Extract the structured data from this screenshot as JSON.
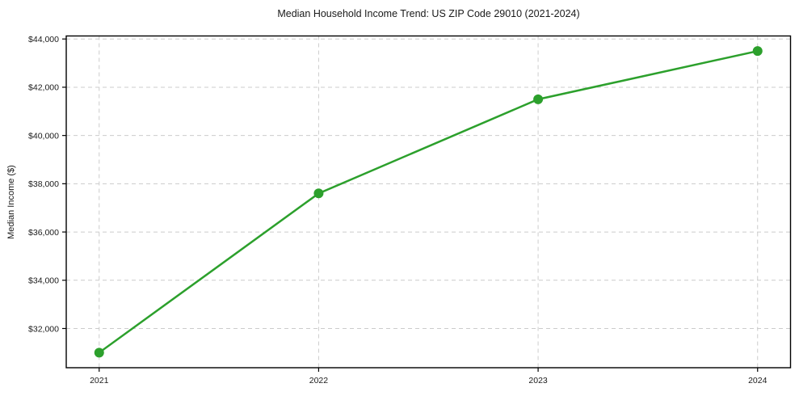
{
  "chart_data": {
    "type": "line",
    "title": "Median Household Income Trend: US ZIP Code 29010 (2021-2024)",
    "xlabel": "",
    "ylabel": "Median Income ($)",
    "x": [
      2021,
      2022,
      2023,
      2024
    ],
    "x_tick_labels": [
      "2021",
      "2022",
      "2023",
      "2024"
    ],
    "series": [
      {
        "name": "Median Household Income",
        "values": [
          31000,
          37600,
          41500,
          43500
        ]
      }
    ],
    "y_ticks": [
      32000,
      34000,
      36000,
      38000,
      40000,
      42000,
      44000
    ],
    "y_tick_labels": [
      "$32,000",
      "$34,000",
      "$36,000",
      "$38,000",
      "$40,000",
      "$42,000",
      "$44,000"
    ],
    "xlim": [
      2020.85,
      2024.15
    ],
    "ylim": [
      30375,
      44125
    ],
    "grid": true,
    "grid_style": "dashed",
    "legend_position": "none",
    "colors": {
      "line": "#2ca02c",
      "marker": "#2ca02c",
      "grid": "#cccccc",
      "axis": "#000000",
      "text": "#1a1a1a",
      "background": "#ffffff"
    },
    "marker": "circle",
    "marker_radius": 6,
    "line_width": 2.5
  }
}
